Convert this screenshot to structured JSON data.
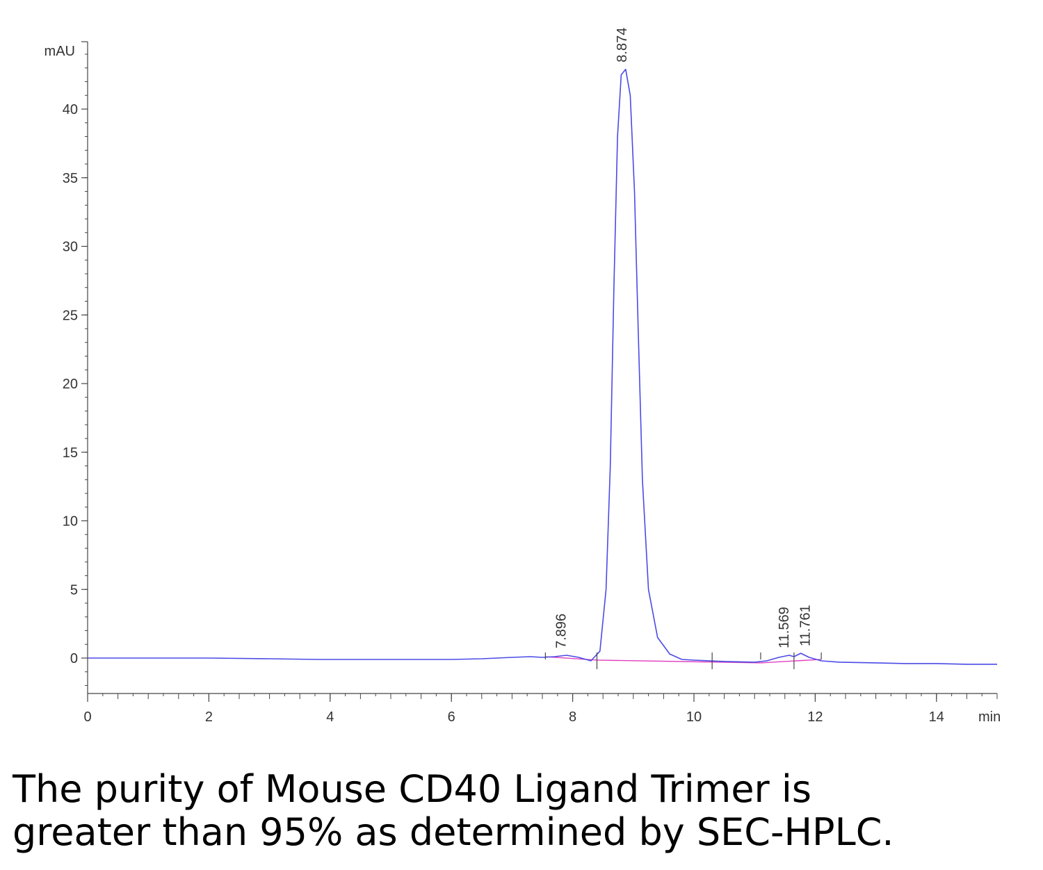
{
  "chart_data": {
    "type": "line",
    "y_unit": "mAU",
    "x_unit": "min",
    "xlim": [
      0,
      15
    ],
    "ylim": [
      -2.6,
      45
    ],
    "x_ticks": [
      0,
      2,
      4,
      6,
      8,
      10,
      12,
      14
    ],
    "y_ticks": [
      0,
      5,
      10,
      15,
      20,
      25,
      30,
      35,
      40
    ],
    "grid": false,
    "colors": {
      "signal": "#4a4ae6",
      "baseline": "#e040c0",
      "axis": "#444444"
    },
    "series": [
      {
        "x": [
          0,
          1,
          2,
          3,
          3.8,
          5,
          6,
          6.5,
          7,
          7.3,
          7.5,
          7.7,
          7.9,
          8.1,
          8.3,
          8.45,
          8.55,
          8.62,
          8.68,
          8.74,
          8.8,
          8.874,
          8.95,
          9.02,
          9.08,
          9.15,
          9.25,
          9.4,
          9.6,
          9.8,
          10.0,
          10.5,
          11.0,
          11.2,
          11.4,
          11.569,
          11.65,
          11.761,
          11.9,
          12.1,
          12.4,
          13.0,
          13.5,
          14.0,
          14.5,
          15.0
        ],
        "y": [
          0.0,
          0.0,
          0.0,
          -0.05,
          -0.1,
          -0.1,
          -0.1,
          -0.05,
          0.05,
          0.1,
          0.05,
          0.1,
          0.2,
          0.05,
          -0.2,
          0.5,
          5.0,
          14.0,
          27.0,
          38.0,
          42.5,
          42.9,
          41.0,
          34.0,
          24.0,
          13.0,
          5.0,
          1.5,
          0.3,
          -0.1,
          -0.15,
          -0.25,
          -0.3,
          -0.2,
          0.05,
          0.2,
          0.1,
          0.35,
          0.05,
          -0.2,
          -0.3,
          -0.35,
          -0.4,
          -0.4,
          -0.45,
          -0.45
        ]
      }
    ],
    "baseline_segments": [
      {
        "x": [
          7.55,
          8.4
        ],
        "y": [
          0.1,
          -0.15
        ]
      },
      {
        "x": [
          8.4,
          11.1
        ],
        "y": [
          -0.15,
          -0.35
        ]
      },
      {
        "x": [
          11.1,
          12.1
        ],
        "y": [
          -0.35,
          -0.1
        ]
      }
    ],
    "peaks": [
      {
        "label": "7.896",
        "x": 7.896,
        "y": 0.2
      },
      {
        "label": "8.874",
        "x": 8.874,
        "y": 42.9
      },
      {
        "label": "11.569",
        "x": 11.569,
        "y": 0.2
      },
      {
        "label": "11.761",
        "x": 11.761,
        "y": 0.35
      }
    ],
    "integration_marks": [
      7.55,
      8.4,
      10.3,
      11.1,
      11.65,
      12.1
    ]
  },
  "caption": {
    "line1": "The purity of Mouse CD40 Ligand Trimer is",
    "line2": "greater than 95% as determined by SEC-HPLC."
  }
}
